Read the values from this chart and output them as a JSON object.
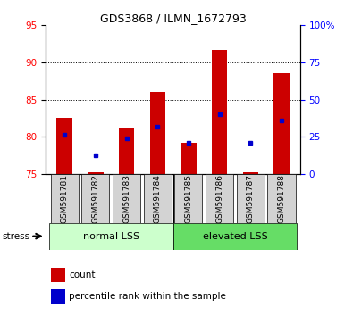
{
  "title": "GDS3868 / ILMN_1672793",
  "samples": [
    "GSM591781",
    "GSM591782",
    "GSM591783",
    "GSM591784",
    "GSM591785",
    "GSM591786",
    "GSM591787",
    "GSM591788"
  ],
  "red_values": [
    82.5,
    75.2,
    81.2,
    86.0,
    79.2,
    91.7,
    75.2,
    88.5
  ],
  "blue_values": [
    80.3,
    77.5,
    79.8,
    81.3,
    79.2,
    83.0,
    79.2,
    82.2
  ],
  "ymin": 75,
  "ymax": 95,
  "yticks_left": [
    75,
    80,
    85,
    90,
    95
  ],
  "yticks_right": [
    0,
    25,
    50,
    75,
    100
  ],
  "group1_label": "normal LSS",
  "group2_label": "elevated LSS",
  "group1_indices": [
    0,
    1,
    2,
    3
  ],
  "group2_indices": [
    4,
    5,
    6,
    7
  ],
  "legend_red": "count",
  "legend_blue": "percentile rank within the sample",
  "bar_color": "#cc0000",
  "dot_color": "#0000cc",
  "group1_bg": "#ccffcc",
  "group2_bg": "#66dd66",
  "tick_bg": "#d3d3d3",
  "bar_width": 0.5,
  "baseline": 75
}
